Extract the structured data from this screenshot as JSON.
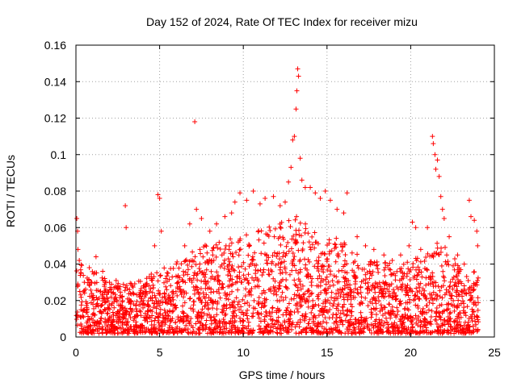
{
  "chart_data": {
    "type": "scatter",
    "title": "Day 152 of 2024, Rate Of TEC Index for receiver mizu",
    "xlabel": "GPS time / hours",
    "ylabel": "ROTI / TECUs",
    "xlim": [
      0,
      25
    ],
    "ylim": [
      0,
      0.16
    ],
    "xticks": [
      0,
      5,
      10,
      15,
      20,
      25
    ],
    "xtick_labels": [
      "0",
      "5",
      "10",
      "15",
      "20",
      "25"
    ],
    "yticks": [
      0,
      0.02,
      0.04,
      0.06,
      0.08,
      0.1,
      0.12,
      0.14,
      0.16
    ],
    "ytick_labels": [
      "0",
      "0.02",
      "0.04",
      "0.06",
      "0.08",
      "0.1",
      "0.12",
      "0.14",
      "0.16"
    ],
    "grid": true,
    "marker": "+",
    "color": "#ff0000",
    "series": [
      {
        "name": "ROTI",
        "points": [
          [
            0.05,
            0.065
          ],
          [
            0.1,
            0.058
          ],
          [
            0.12,
            0.048
          ],
          [
            0.2,
            0.042
          ],
          [
            0.3,
            0.035
          ],
          [
            0.5,
            0.03
          ],
          [
            0.8,
            0.038
          ],
          [
            1.2,
            0.044
          ],
          [
            1.6,
            0.036
          ],
          [
            2.0,
            0.03
          ],
          [
            2.5,
            0.028
          ],
          [
            2.95,
            0.072
          ],
          [
            3.0,
            0.06
          ],
          [
            3.2,
            0.026
          ],
          [
            3.8,
            0.022
          ],
          [
            4.2,
            0.025
          ],
          [
            4.5,
            0.032
          ],
          [
            4.9,
            0.078
          ],
          [
            5.0,
            0.076
          ],
          [
            5.1,
            0.058
          ],
          [
            4.7,
            0.05
          ],
          [
            5.5,
            0.035
          ],
          [
            6.0,
            0.04
          ],
          [
            6.5,
            0.05
          ],
          [
            6.8,
            0.062
          ],
          [
            7.1,
            0.118
          ],
          [
            7.2,
            0.07
          ],
          [
            7.5,
            0.065
          ],
          [
            8.0,
            0.058
          ],
          [
            8.4,
            0.062
          ],
          [
            8.9,
            0.066
          ],
          [
            9.3,
            0.068
          ],
          [
            9.5,
            0.074
          ],
          [
            9.8,
            0.079
          ],
          [
            10.2,
            0.075
          ],
          [
            10.6,
            0.08
          ],
          [
            11.0,
            0.073
          ],
          [
            11.3,
            0.076
          ],
          [
            11.8,
            0.077
          ],
          [
            12.2,
            0.072
          ],
          [
            12.5,
            0.074
          ],
          [
            12.7,
            0.085
          ],
          [
            12.85,
            0.093
          ],
          [
            12.95,
            0.108
          ],
          [
            13.05,
            0.11
          ],
          [
            13.15,
            0.125
          ],
          [
            13.2,
            0.135
          ],
          [
            13.25,
            0.147
          ],
          [
            13.3,
            0.143
          ],
          [
            13.4,
            0.098
          ],
          [
            13.5,
            0.086
          ],
          [
            13.7,
            0.082
          ],
          [
            14.0,
            0.082
          ],
          [
            14.3,
            0.079
          ],
          [
            14.6,
            0.076
          ],
          [
            14.9,
            0.08
          ],
          [
            15.2,
            0.075
          ],
          [
            15.6,
            0.07
          ],
          [
            16.0,
            0.068
          ],
          [
            16.2,
            0.079
          ],
          [
            16.8,
            0.055
          ],
          [
            17.3,
            0.05
          ],
          [
            17.8,
            0.048
          ],
          [
            18.4,
            0.045
          ],
          [
            18.9,
            0.042
          ],
          [
            19.4,
            0.045
          ],
          [
            19.9,
            0.05
          ],
          [
            20.1,
            0.063
          ],
          [
            20.3,
            0.06
          ],
          [
            20.6,
            0.048
          ],
          [
            21.0,
            0.06
          ],
          [
            21.3,
            0.11
          ],
          [
            21.35,
            0.106
          ],
          [
            21.45,
            0.1
          ],
          [
            21.5,
            0.092
          ],
          [
            21.6,
            0.097
          ],
          [
            21.7,
            0.088
          ],
          [
            21.8,
            0.077
          ],
          [
            21.9,
            0.07
          ],
          [
            22.0,
            0.065
          ],
          [
            22.3,
            0.055
          ],
          [
            22.8,
            0.045
          ],
          [
            23.2,
            0.04
          ],
          [
            23.5,
            0.075
          ],
          [
            23.6,
            0.066
          ],
          [
            23.8,
            0.064
          ],
          [
            23.95,
            0.058
          ],
          [
            24.0,
            0.05
          ]
        ]
      }
    ],
    "noise_band": {
      "description": "dense cloud of low ROTI values spanning the full day",
      "x_range": [
        0,
        24.05
      ],
      "envelope": [
        [
          0,
          0.04
        ],
        [
          1,
          0.035
        ],
        [
          2,
          0.03
        ],
        [
          3,
          0.028
        ],
        [
          4,
          0.03
        ],
        [
          5,
          0.035
        ],
        [
          6,
          0.04
        ],
        [
          7,
          0.045
        ],
        [
          8,
          0.05
        ],
        [
          9,
          0.052
        ],
        [
          10,
          0.055
        ],
        [
          11,
          0.058
        ],
        [
          12,
          0.06
        ],
        [
          12.5,
          0.065
        ],
        [
          13,
          0.068
        ],
        [
          13.5,
          0.062
        ],
        [
          14,
          0.058
        ],
        [
          15,
          0.055
        ],
        [
          16,
          0.05
        ],
        [
          17,
          0.042
        ],
        [
          18,
          0.04
        ],
        [
          19,
          0.038
        ],
        [
          20,
          0.04
        ],
        [
          21,
          0.045
        ],
        [
          21.5,
          0.05
        ],
        [
          22,
          0.048
        ],
        [
          23,
          0.038
        ],
        [
          24,
          0.035
        ]
      ],
      "seed": 152
    }
  }
}
